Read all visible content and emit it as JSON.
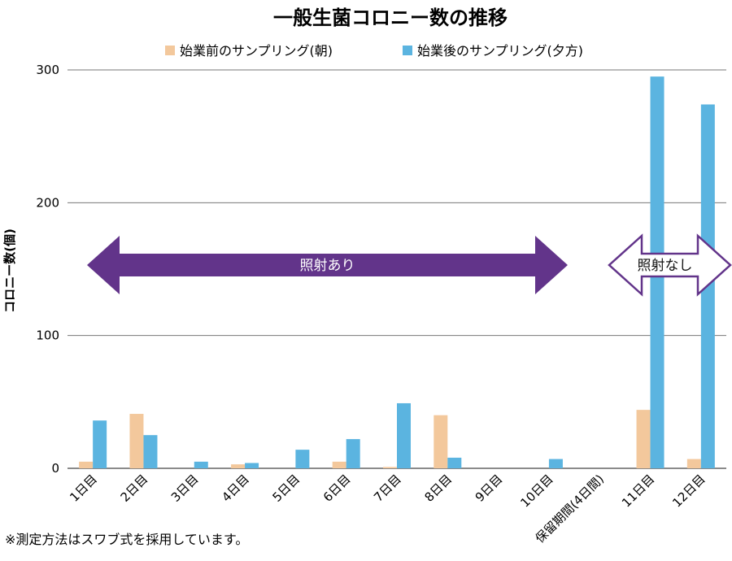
{
  "chart_data": {
    "type": "bar",
    "title": "一般生菌コロニー数の推移",
    "ylabel": "コロニー数(個)",
    "xlabel": "",
    "ylim": [
      0,
      300
    ],
    "yticks": [
      0,
      100,
      200,
      300
    ],
    "grid": true,
    "legend_position": "top",
    "categories": [
      "1日目",
      "2日目",
      "3日目",
      "4日目",
      "5日目",
      "6日目",
      "7日目",
      "8日目",
      "9日目",
      "10日目",
      "保留期間(4日間)",
      "11日目",
      "12日目"
    ],
    "series": [
      {
        "name": "始業前のサンプリング(朝)",
        "color": "#f3c89c",
        "values": [
          5,
          41,
          0,
          3,
          0,
          5,
          1,
          40,
          0,
          0,
          0,
          44,
          7
        ]
      },
      {
        "name": "始業後のサンプリング(夕方)",
        "color": "#5bb4e0",
        "values": [
          36,
          25,
          5,
          4,
          14,
          22,
          49,
          8,
          0,
          7,
          0,
          295,
          274
        ]
      }
    ],
    "annotations": [
      {
        "text": "照射あり",
        "from_category": 0,
        "to_category": 9,
        "style": "filled",
        "color": "#62348a"
      },
      {
        "text": "照射なし",
        "from_category": 11,
        "to_category": 12,
        "style": "outline",
        "color": "#62348a"
      }
    ]
  },
  "footnote": "※測定方法はスワブ式を採用しています。"
}
